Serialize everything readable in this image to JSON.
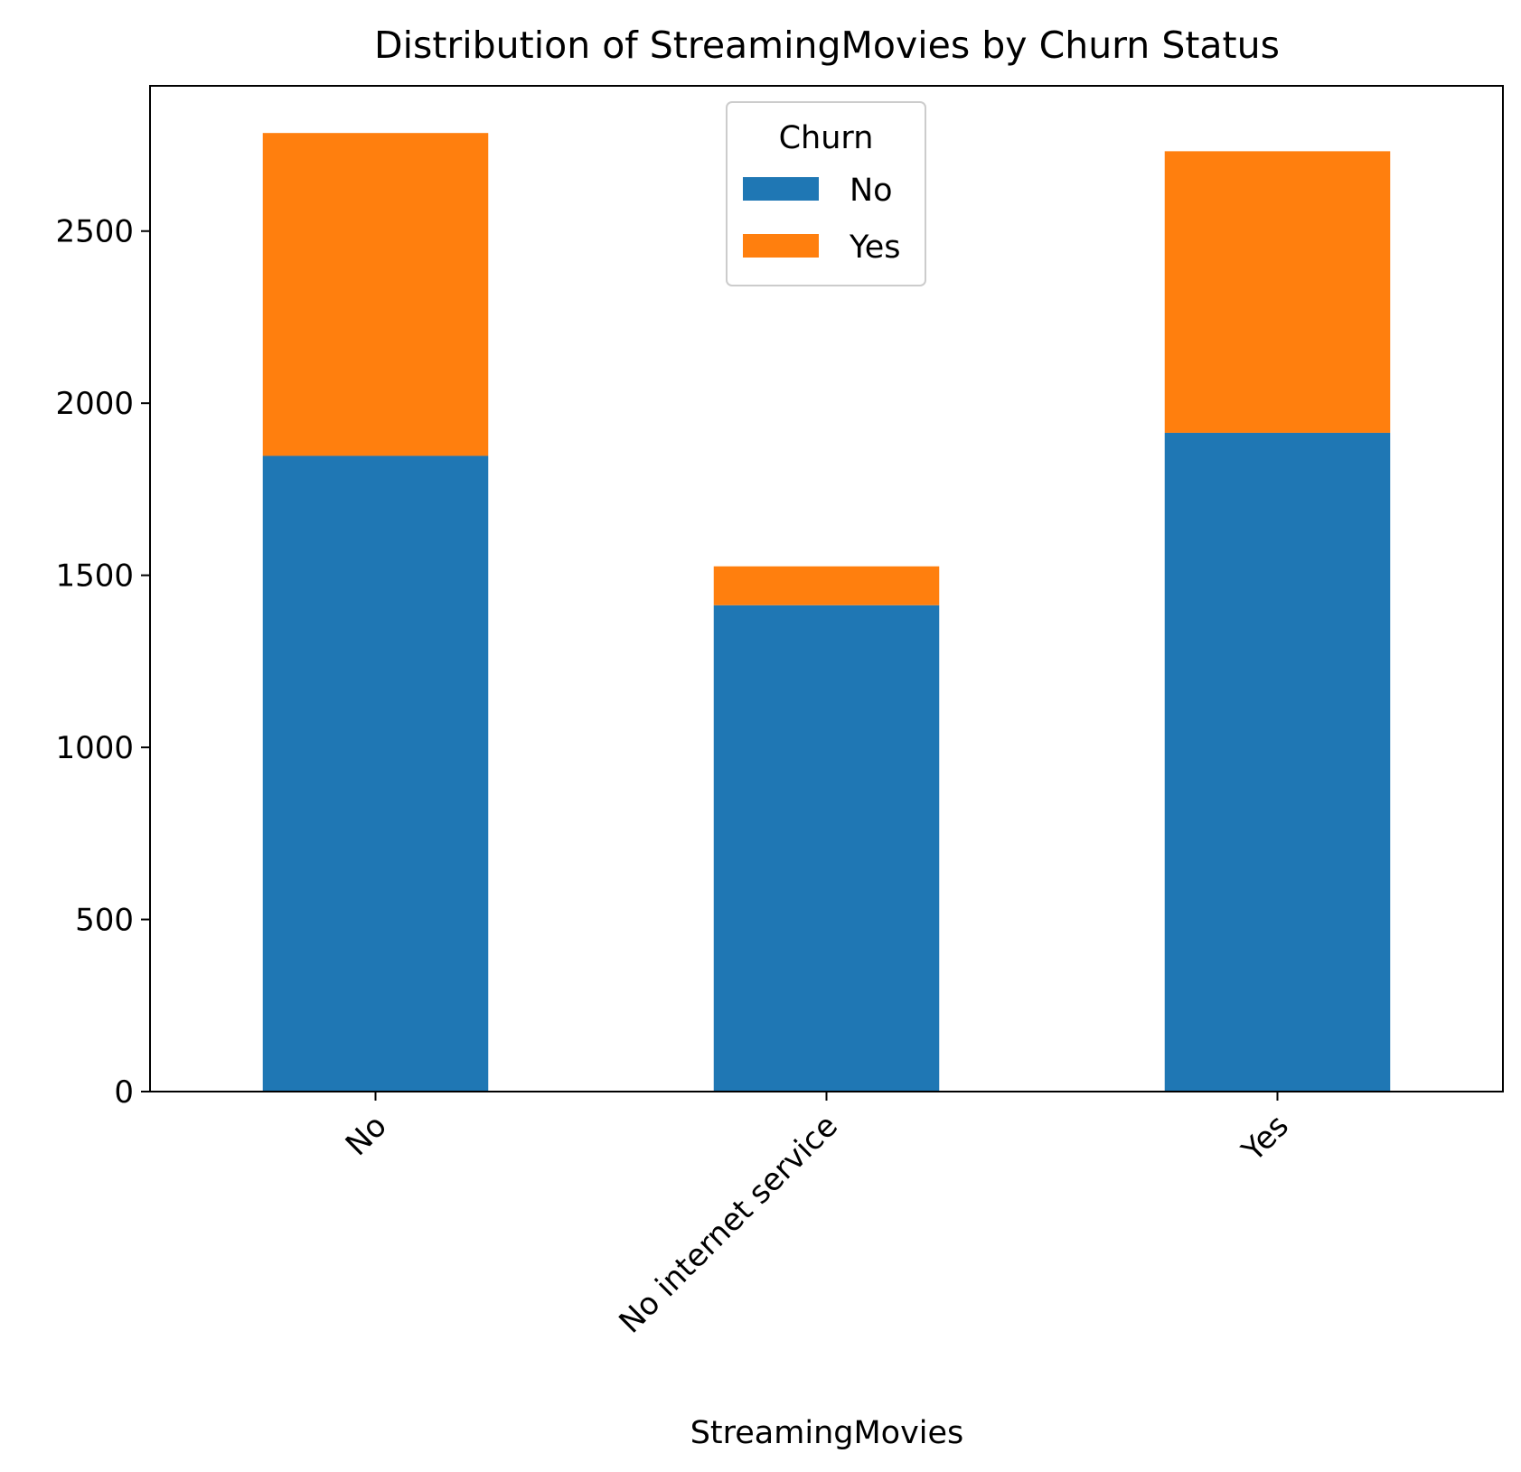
{
  "chart_data": {
    "type": "bar",
    "stacked": true,
    "title": "Distribution of StreamingMovies by Churn Status",
    "xlabel": "StreamingMovies",
    "ylabel": "",
    "categories": [
      "No",
      "No internet service",
      "Yes"
    ],
    "series": [
      {
        "name": "No",
        "values": [
          1847,
          1413,
          1914
        ],
        "color": "#1f77b4"
      },
      {
        "name": "Yes",
        "values": [
          938,
          113,
          818
        ],
        "color": "#ff7f0e"
      }
    ],
    "yticks": [
      0,
      500,
      1000,
      1500,
      2000,
      2500
    ],
    "ylim": [
      0,
      2922
    ],
    "legend": {
      "title": "Churn",
      "placement": "upper-center"
    },
    "grid": false
  }
}
